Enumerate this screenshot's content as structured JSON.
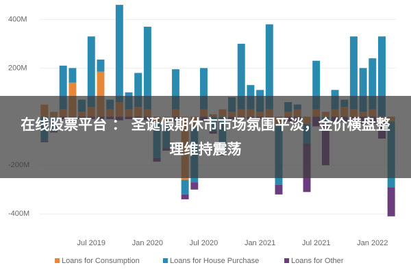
{
  "chart_data": {
    "type": "stacked_bar",
    "annotation": "在线股票平台 ： 圣诞假期休市市场氛围平淡，金价横盘整理维持震荡",
    "categories": [
      null,
      null,
      null,
      null,
      null,
      "Jul 2019",
      null,
      null,
      null,
      null,
      null,
      "Jan 2020",
      null,
      null,
      null,
      null,
      null,
      "Jul 2020",
      null,
      null,
      null,
      null,
      null,
      "Jan 2021",
      null,
      null,
      null,
      null,
      null,
      "Jul 2021",
      null,
      null,
      null,
      null,
      null,
      "Jan 2022",
      null,
      null
    ],
    "series": [
      {
        "name": "Loans for Consumption",
        "color": "#e8873a",
        "values": [
          50,
          20,
          30,
          140,
          20,
          40,
          185,
          30,
          60,
          30,
          40,
          30,
          -20,
          -20,
          30,
          -260,
          -40,
          30,
          10,
          30,
          20,
          30,
          30,
          20,
          30,
          -30,
          20,
          30,
          -30,
          30,
          20,
          30,
          40,
          30,
          20,
          30,
          -20,
          -20
        ]
      },
      {
        "name": "Loans for House Purchase",
        "color": "#2a8ab0",
        "values": [
          -100,
          -60,
          180,
          60,
          50,
          290,
          50,
          40,
          400,
          70,
          140,
          340,
          -150,
          -110,
          165,
          -60,
          -230,
          170,
          -60,
          -150,
          60,
          270,
          100,
          90,
          350,
          -250,
          40,
          20,
          -80,
          200,
          -20,
          80,
          30,
          300,
          180,
          210,
          330,
          -270
        ]
      },
      {
        "name": "Loans for Other",
        "color": "#6b3d7e",
        "values": [
          -5,
          -5,
          -10,
          -10,
          -10,
          -10,
          -10,
          -10,
          -15,
          -10,
          -10,
          -15,
          -15,
          -10,
          -20,
          -20,
          -30,
          -20,
          -10,
          -10,
          -10,
          -10,
          -10,
          -10,
          -10,
          -40,
          -20,
          -30,
          -200,
          -40,
          -180,
          -20,
          -20,
          -20,
          -30,
          -30,
          -70,
          -120
        ]
      }
    ],
    "ylim": [
      -450,
      480
    ],
    "yticks": [
      {
        "value": -400,
        "label": "-400M"
      },
      {
        "value": -200,
        "label": "-200M"
      },
      {
        "value": 200,
        "label": "200M"
      },
      {
        "value": 400,
        "label": "400M"
      }
    ],
    "grid": true
  }
}
